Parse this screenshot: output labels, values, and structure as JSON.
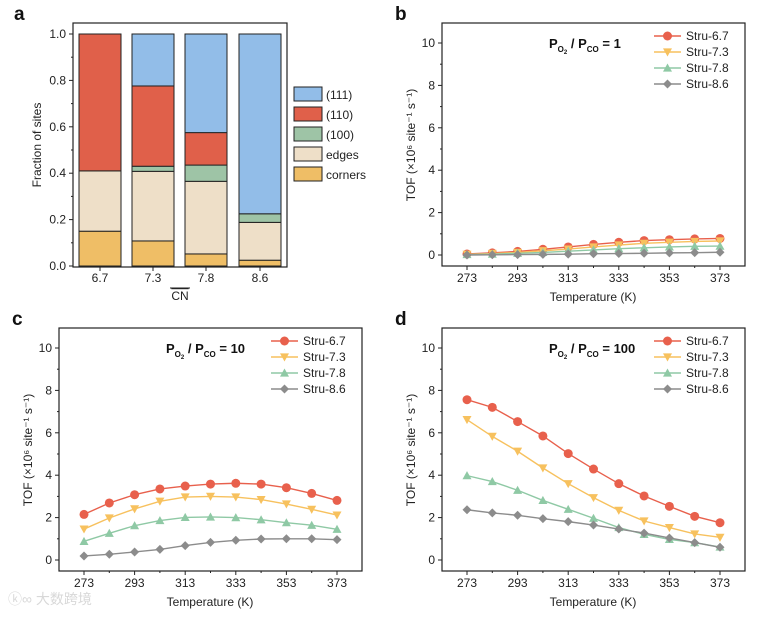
{
  "watermark": "大数跨境",
  "chart_data": [
    {
      "panel": "a",
      "type": "bar",
      "stacked": true,
      "categories": [
        "6.7",
        "7.3",
        "7.8",
        "8.6"
      ],
      "xlabel": "CN",
      "ylabel": "Fraction of sites",
      "ylim": [
        0,
        1.0
      ],
      "yticks": [
        "0.0",
        "0.2",
        "0.4",
        "0.6",
        "0.8",
        "1.0"
      ],
      "legend_position": "right",
      "series": [
        {
          "name": "corners",
          "color": "#EFBE66",
          "values": [
            0.15,
            0.108,
            0.052,
            0.025
          ]
        },
        {
          "name": "edges",
          "color": "#EEDFC8",
          "values": [
            0.26,
            0.3,
            0.313,
            0.163
          ]
        },
        {
          "name": "(100)",
          "color": "#9EC4A6",
          "values": [
            0.0,
            0.022,
            0.07,
            0.037
          ]
        },
        {
          "name": "(110)",
          "color": "#E0604A",
          "values": [
            0.59,
            0.346,
            0.14,
            0.0
          ]
        },
        {
          "name": "(111)",
          "color": "#92BDE8",
          "values": [
            0.0,
            0.224,
            0.425,
            0.775
          ]
        }
      ],
      "legend_order": [
        "(111)",
        "(110)",
        "(100)",
        "edges",
        "corners"
      ]
    },
    {
      "panel": "b",
      "type": "line",
      "annotation": {
        "p1": "P",
        "s1": "O",
        "s1b": "2",
        "mid": " / P",
        "s2": "CO",
        "tail": " = 1"
      },
      "xlabel": "Temperature (K)",
      "ylabel": "TOF (×10⁶ site⁻¹ s⁻¹)",
      "xlim": [
        263,
        383
      ],
      "ylim": [
        -0.5,
        11
      ],
      "xticks": [
        "273",
        "293",
        "313",
        "333",
        "353",
        "373"
      ],
      "yticks": [
        "0",
        "2",
        "4",
        "6",
        "8",
        "10"
      ],
      "x": [
        273,
        283,
        293,
        303,
        313,
        323,
        333,
        343,
        353,
        363,
        373
      ],
      "legend_position": "top-right",
      "series": [
        {
          "name": "Stru-6.7",
          "color": "#E8604C",
          "marker": "circle",
          "values": [
            0.05,
            0.1,
            0.17,
            0.27,
            0.38,
            0.5,
            0.6,
            0.68,
            0.72,
            0.76,
            0.78
          ]
        },
        {
          "name": "Stru-7.3",
          "color": "#F7C15E",
          "marker": "triangle-down",
          "values": [
            0.03,
            0.07,
            0.12,
            0.2,
            0.28,
            0.38,
            0.47,
            0.55,
            0.6,
            0.64,
            0.66
          ]
        },
        {
          "name": "Stru-7.8",
          "color": "#8FC9A5",
          "marker": "triangle-up",
          "values": [
            0.02,
            0.04,
            0.08,
            0.12,
            0.18,
            0.24,
            0.3,
            0.34,
            0.38,
            0.41,
            0.42
          ]
        },
        {
          "name": "Stru-8.6",
          "color": "#8C8C8C",
          "marker": "diamond",
          "values": [
            0.0,
            0.01,
            0.02,
            0.03,
            0.04,
            0.06,
            0.07,
            0.08,
            0.1,
            0.11,
            0.13
          ]
        }
      ]
    },
    {
      "panel": "c",
      "type": "line",
      "annotation": {
        "p1": "P",
        "s1": "O",
        "s1b": "2",
        "mid": " / P",
        "s2": "CO",
        "tail": " = 10"
      },
      "xlabel": "Temperature (K)",
      "ylabel": "TOF (×10⁶ site⁻¹ s⁻¹)",
      "xlim": [
        263,
        383
      ],
      "ylim": [
        -0.5,
        11
      ],
      "xticks": [
        "273",
        "293",
        "313",
        "333",
        "353",
        "373"
      ],
      "yticks": [
        "0",
        "2",
        "4",
        "6",
        "8",
        "10"
      ],
      "x": [
        273,
        283,
        293,
        303,
        313,
        323,
        333,
        343,
        353,
        363,
        373
      ],
      "legend_position": "top-right",
      "series": [
        {
          "name": "Stru-6.7",
          "color": "#E8604C",
          "marker": "circle",
          "values": [
            2.15,
            2.69,
            3.08,
            3.35,
            3.49,
            3.58,
            3.62,
            3.58,
            3.41,
            3.14,
            2.81
          ]
        },
        {
          "name": "Stru-7.3",
          "color": "#F7C15E",
          "marker": "triangle-down",
          "values": [
            1.46,
            1.98,
            2.41,
            2.77,
            2.97,
            3.0,
            2.97,
            2.85,
            2.64,
            2.39,
            2.12
          ]
        },
        {
          "name": "Stru-7.8",
          "color": "#8FC9A5",
          "marker": "triangle-up",
          "values": [
            0.88,
            1.26,
            1.62,
            1.86,
            2.01,
            2.03,
            2.0,
            1.9,
            1.76,
            1.64,
            1.45
          ]
        },
        {
          "name": "Stru-8.6",
          "color": "#8C8C8C",
          "marker": "diamond",
          "values": [
            0.19,
            0.27,
            0.38,
            0.5,
            0.68,
            0.83,
            0.93,
            0.99,
            1.0,
            1.0,
            0.96
          ]
        }
      ]
    },
    {
      "panel": "d",
      "type": "line",
      "annotation": {
        "p1": "P",
        "s1": "O",
        "s1b": "2",
        "mid": " / P",
        "s2": "CO",
        "tail": " = 100"
      },
      "xlabel": "Temperature (K)",
      "ylabel": "TOF (×10⁶ site⁻¹ s⁻¹)",
      "xlim": [
        263,
        383
      ],
      "ylim": [
        -0.5,
        11
      ],
      "xticks": [
        "273",
        "293",
        "313",
        "333",
        "353",
        "373"
      ],
      "yticks": [
        "0",
        "2",
        "4",
        "6",
        "8",
        "10"
      ],
      "x": [
        273,
        283,
        293,
        303,
        313,
        323,
        333,
        343,
        353,
        363,
        373
      ],
      "legend_position": "top-right",
      "series": [
        {
          "name": "Stru-6.7",
          "color": "#E8604C",
          "marker": "circle",
          "values": [
            7.56,
            7.2,
            6.53,
            5.85,
            5.02,
            4.29,
            3.6,
            3.02,
            2.53,
            2.06,
            1.76
          ]
        },
        {
          "name": "Stru-7.3",
          "color": "#F7C15E",
          "marker": "triangle-down",
          "values": [
            6.62,
            5.83,
            5.13,
            4.34,
            3.6,
            2.94,
            2.34,
            1.84,
            1.53,
            1.23,
            1.07
          ]
        },
        {
          "name": "Stru-7.8",
          "color": "#8FC9A5",
          "marker": "triangle-up",
          "values": [
            3.98,
            3.7,
            3.29,
            2.81,
            2.39,
            1.97,
            1.53,
            1.21,
            0.97,
            0.82,
            0.61
          ]
        },
        {
          "name": "Stru-8.6",
          "color": "#8C8C8C",
          "marker": "diamond",
          "values": [
            2.37,
            2.22,
            2.11,
            1.95,
            1.81,
            1.65,
            1.46,
            1.27,
            1.04,
            0.82,
            0.6
          ]
        }
      ]
    }
  ]
}
